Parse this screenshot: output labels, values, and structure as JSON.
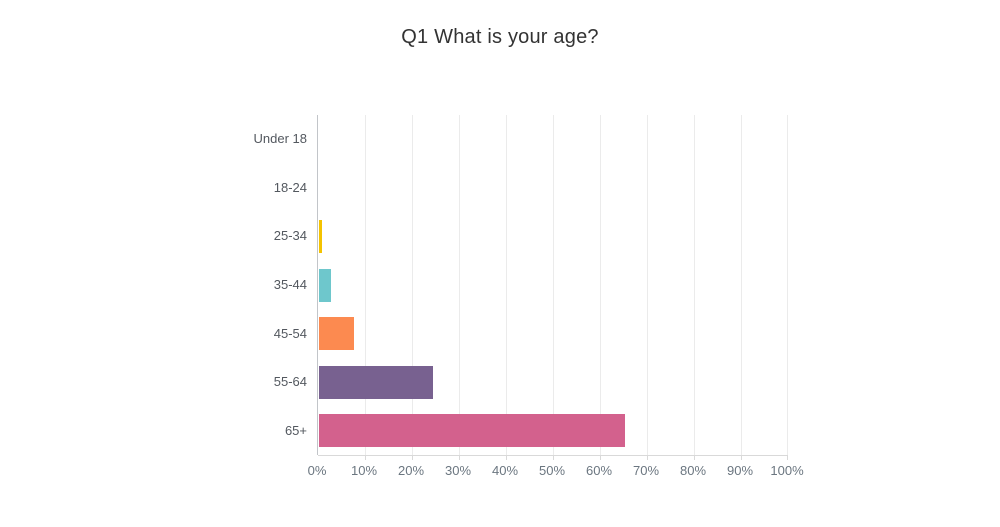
{
  "chart_data": {
    "type": "bar",
    "orientation": "horizontal",
    "title": "Q1 What is your age?",
    "categories": [
      "Under 18",
      "18-24",
      "25-34",
      "35-44",
      "45-54",
      "55-64",
      "65+"
    ],
    "values": [
      0,
      0,
      0.7,
      2.5,
      7.5,
      24.2,
      65
    ],
    "unit": "%",
    "bar_colors": [
      null,
      null,
      "#F4C300",
      "#6EC7CC",
      "#FC8A50",
      "#786190",
      "#D3618D"
    ],
    "x_ticks": [
      "0%",
      "10%",
      "20%",
      "30%",
      "40%",
      "50%",
      "60%",
      "70%",
      "80%",
      "90%",
      "100%"
    ],
    "xlim": [
      0,
      100
    ],
    "grid": "vertical",
    "legend": "none",
    "colors": {
      "background": "#ffffff",
      "title_text": "#333333",
      "category_label_text": "#53585f",
      "tick_label_text": "#6b7680",
      "gridline": "#ebebeb",
      "axis_line": "#c2c5c9",
      "baseline": "#d9d9d9"
    }
  }
}
